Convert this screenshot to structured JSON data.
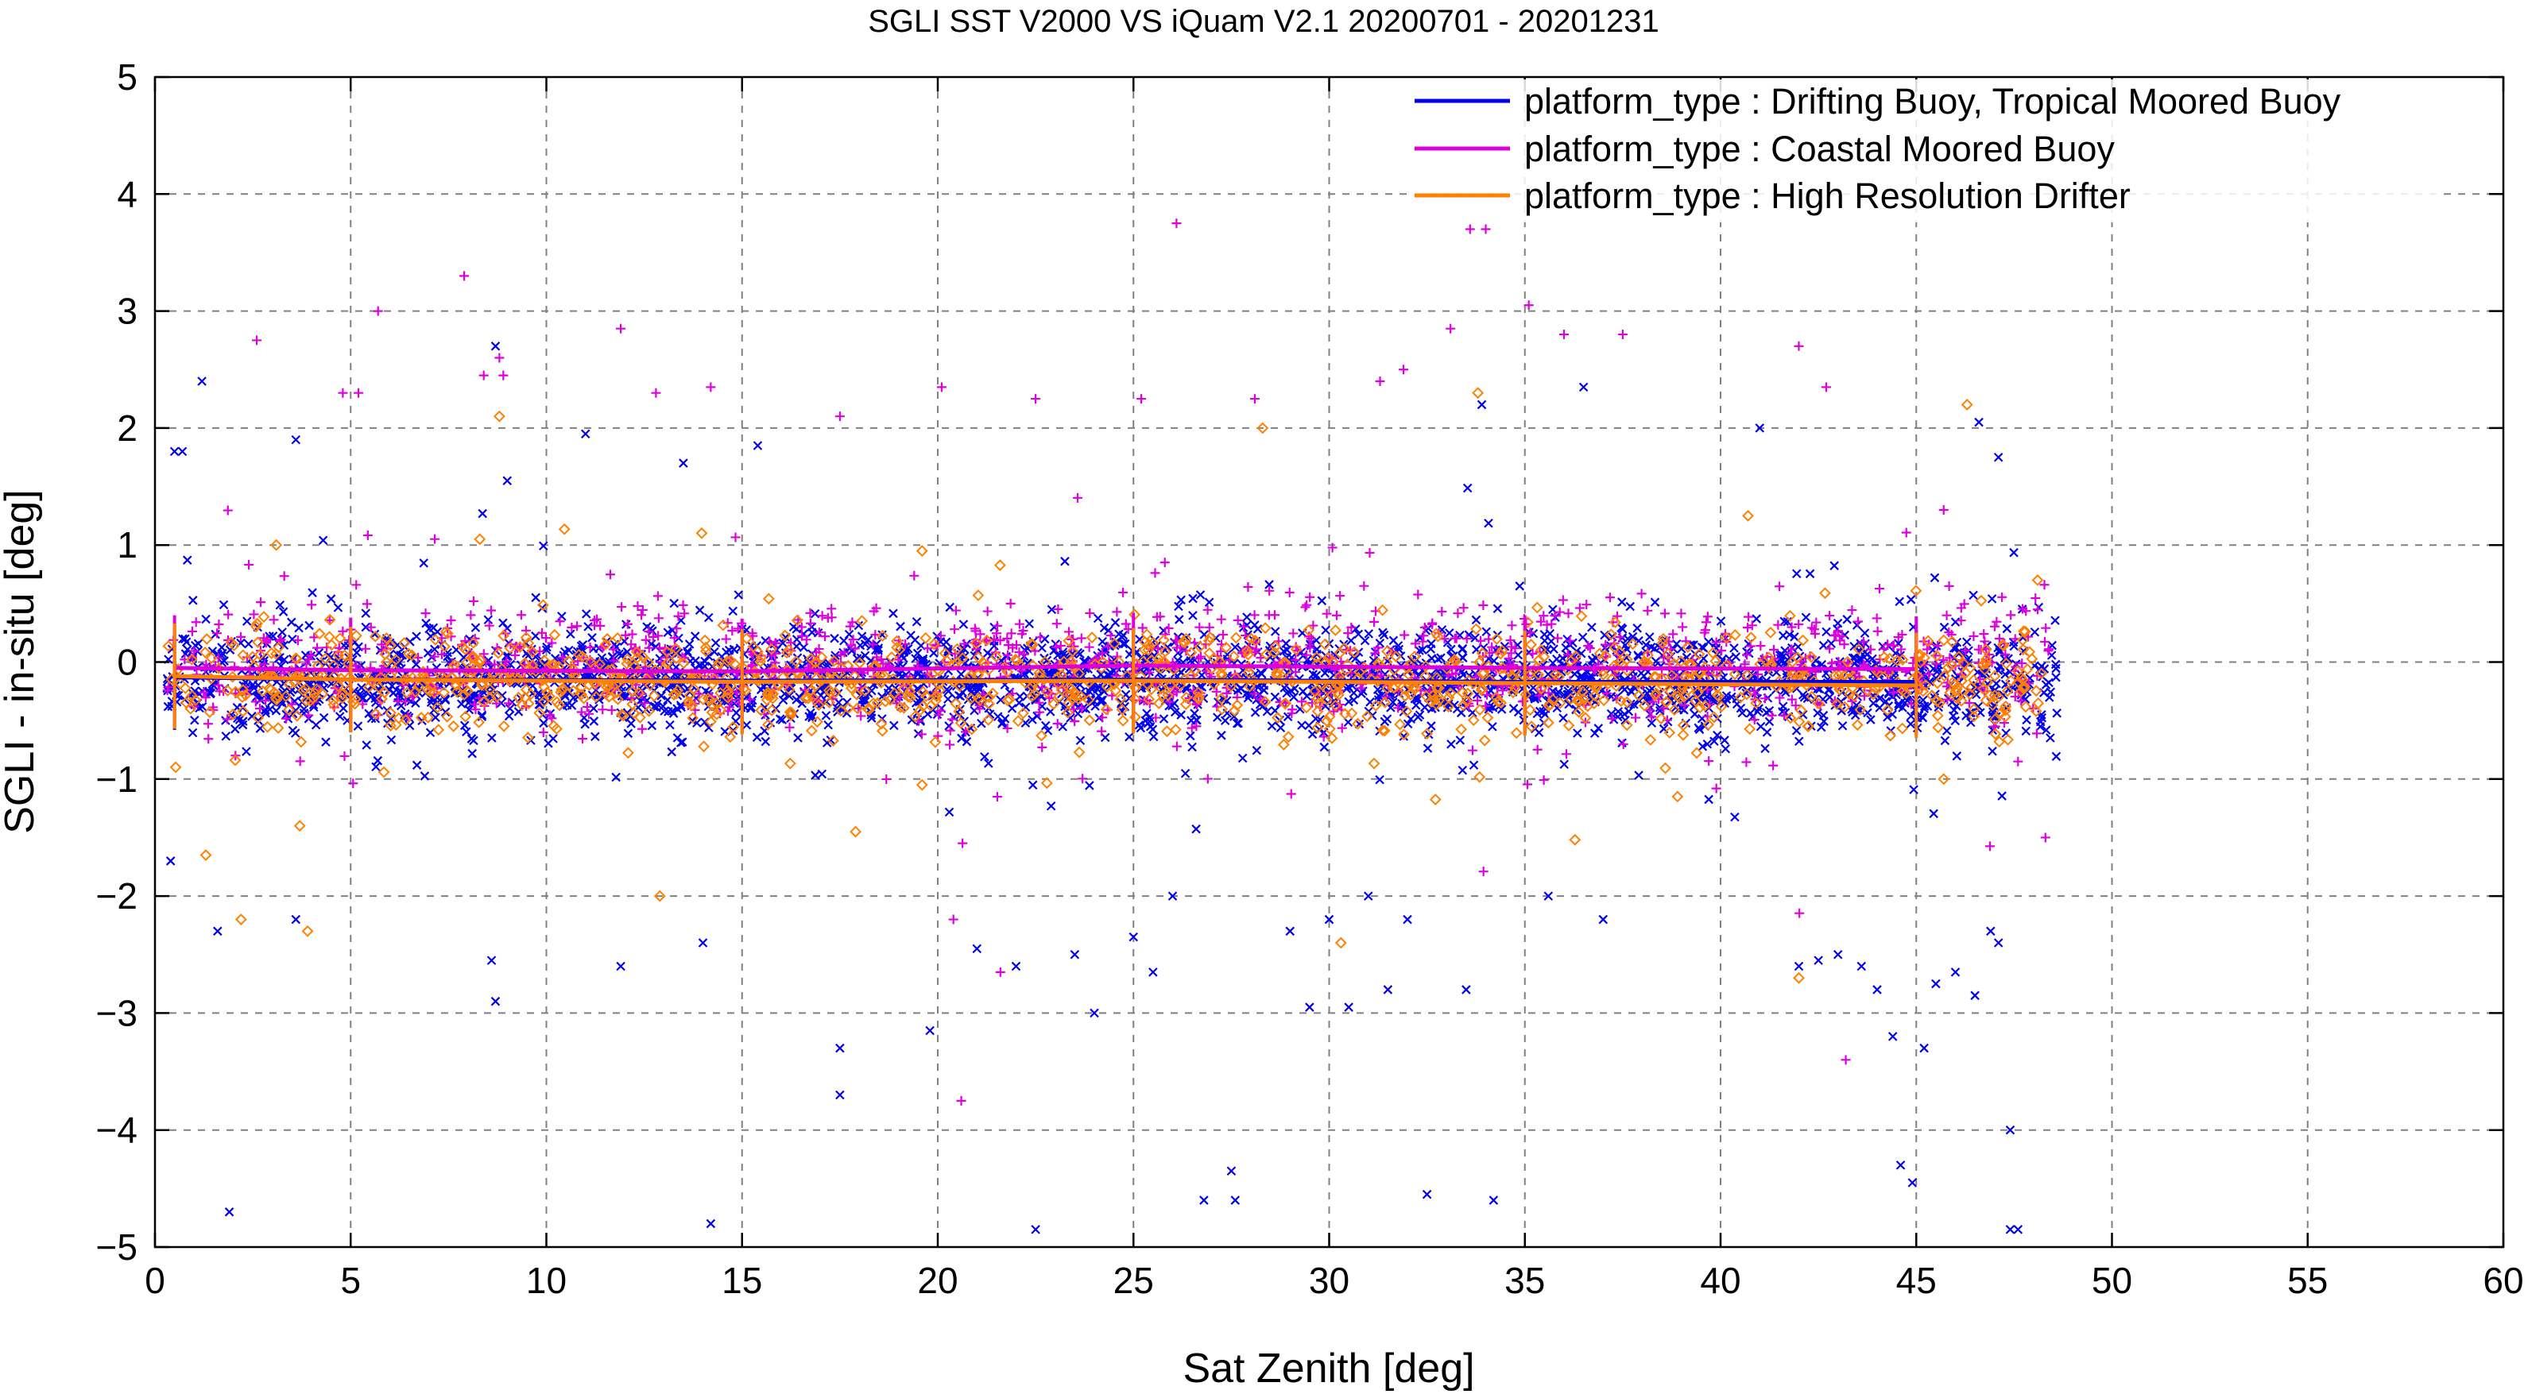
{
  "chart_data": {
    "type": "scatter",
    "title": "SGLI SST V2000 VS iQuam V2.1 20200701 - 20201231",
    "xlabel": "Sat Zenith [deg]",
    "ylabel": "SGLI - in-situ [deg]",
    "xlim": [
      0,
      60
    ],
    "ylim": [
      -5,
      5
    ],
    "xticks": [
      0,
      5,
      10,
      15,
      20,
      25,
      30,
      35,
      40,
      45,
      50,
      55,
      60
    ],
    "yticks": [
      -5,
      -4,
      -3,
      -2,
      -1,
      0,
      1,
      2,
      3,
      4,
      5
    ],
    "grid": true,
    "legend_position": "top-right",
    "series": [
      {
        "name": "platform_type : Drifting Buoy, Tropical Moored Buoy",
        "color": "#0000ee",
        "marker": "x",
        "x_range": [
          0.3,
          48.6
        ],
        "typical_range": [
          -0.6,
          0.3
        ],
        "mean_line": [
          [
            0.5,
            -0.13
          ],
          [
            5,
            -0.15
          ],
          [
            15,
            -0.16
          ],
          [
            25,
            -0.15
          ],
          [
            35,
            -0.17
          ],
          [
            45,
            -0.17
          ]
        ],
        "outliers": [
          [
            0.5,
            1.8
          ],
          [
            0.7,
            1.8
          ],
          [
            1.2,
            2.4
          ],
          [
            1.9,
            -4.7
          ],
          [
            1.6,
            -2.3
          ],
          [
            0.4,
            -1.7
          ],
          [
            3.6,
            -2.2
          ],
          [
            3.6,
            1.9
          ],
          [
            8.7,
            2.7
          ],
          [
            8.6,
            -2.55
          ],
          [
            8.7,
            -2.9
          ],
          [
            9.0,
            1.55
          ],
          [
            11.0,
            1.95
          ],
          [
            11.9,
            -2.6
          ],
          [
            13.5,
            1.7
          ],
          [
            14.0,
            -2.4
          ],
          [
            14.2,
            -4.8
          ],
          [
            15.4,
            1.85
          ],
          [
            17.5,
            -3.3
          ],
          [
            17.5,
            -3.7
          ],
          [
            19.8,
            -3.15
          ],
          [
            21.0,
            -2.45
          ],
          [
            22.0,
            -2.6
          ],
          [
            22.5,
            -4.85
          ],
          [
            23.5,
            -2.5
          ],
          [
            24.0,
            -3.0
          ],
          [
            25.0,
            -2.35
          ],
          [
            25.5,
            -2.65
          ],
          [
            26.0,
            -2.0
          ],
          [
            26.8,
            -4.6
          ],
          [
            27.5,
            -4.35
          ],
          [
            27.6,
            -4.6
          ],
          [
            29.0,
            -2.3
          ],
          [
            29.5,
            -2.95
          ],
          [
            30.0,
            -2.2
          ],
          [
            30.5,
            -2.95
          ],
          [
            31.0,
            -2.0
          ],
          [
            31.5,
            -2.8
          ],
          [
            32.0,
            -2.2
          ],
          [
            32.5,
            -4.55
          ],
          [
            33.5,
            -2.8
          ],
          [
            33.9,
            2.2
          ],
          [
            34.2,
            -4.6
          ],
          [
            35.6,
            -2.0
          ],
          [
            36.5,
            2.35
          ],
          [
            37.0,
            -2.2
          ],
          [
            41.0,
            2.0
          ],
          [
            42.0,
            -2.6
          ],
          [
            42.5,
            -2.55
          ],
          [
            43.0,
            -2.5
          ],
          [
            43.6,
            -2.6
          ],
          [
            44.0,
            -2.8
          ],
          [
            44.4,
            -3.2
          ],
          [
            44.6,
            -4.3
          ],
          [
            44.9,
            -4.45
          ],
          [
            45.2,
            -3.3
          ],
          [
            45.5,
            -2.75
          ],
          [
            46.0,
            -2.65
          ],
          [
            46.5,
            -2.85
          ],
          [
            46.9,
            -2.3
          ],
          [
            47.1,
            -2.4
          ],
          [
            47.4,
            -4.0
          ],
          [
            47.4,
            -4.85
          ],
          [
            47.6,
            -4.85
          ],
          [
            46.6,
            2.05
          ],
          [
            47.1,
            1.75
          ],
          [
            48.2,
            -0.45
          ]
        ]
      },
      {
        "name": "platform_type : Coastal Moored Buoy",
        "color": "#dd00dd",
        "marker": "+",
        "x_range": [
          0.3,
          48.4
        ],
        "typical_range": [
          -0.55,
          0.55
        ],
        "mean_line": [
          [
            0.5,
            -0.05
          ],
          [
            5,
            -0.07
          ],
          [
            15,
            -0.08
          ],
          [
            25,
            -0.03
          ],
          [
            35,
            -0.05
          ],
          [
            45,
            -0.06
          ]
        ],
        "outliers": [
          [
            2.6,
            2.75
          ],
          [
            4.8,
            2.3
          ],
          [
            5.2,
            2.3
          ],
          [
            5.7,
            3.0
          ],
          [
            7.9,
            3.3
          ],
          [
            8.4,
            2.45
          ],
          [
            8.8,
            2.6
          ],
          [
            8.9,
            2.45
          ],
          [
            11.9,
            2.85
          ],
          [
            12.8,
            2.3
          ],
          [
            14.2,
            2.35
          ],
          [
            17.5,
            2.1
          ],
          [
            20.1,
            2.35
          ],
          [
            20.4,
            -2.2
          ],
          [
            20.6,
            -3.75
          ],
          [
            21.6,
            -2.65
          ],
          [
            22.5,
            2.25
          ],
          [
            25.2,
            2.25
          ],
          [
            26.1,
            3.75
          ],
          [
            28.1,
            2.25
          ],
          [
            31.3,
            2.4
          ],
          [
            31.9,
            2.5
          ],
          [
            33.1,
            2.85
          ],
          [
            33.6,
            3.7
          ],
          [
            34.0,
            3.7
          ],
          [
            35.1,
            3.05
          ],
          [
            36.0,
            2.8
          ],
          [
            37.5,
            2.8
          ],
          [
            42.0,
            2.7
          ],
          [
            42.7,
            2.35
          ],
          [
            43.2,
            -3.4
          ],
          [
            45.7,
            1.3
          ],
          [
            48.1,
            0.45
          ],
          [
            48.3,
            -1.5
          ],
          [
            47.6,
            -0.85
          ]
        ]
      },
      {
        "name": "platform_type : High Resolution Drifter",
        "color": "#ff8000",
        "marker": "diamond",
        "x_range": [
          0.3,
          48.2
        ],
        "typical_range": [
          -0.55,
          0.25
        ],
        "mean_line": [
          [
            0.5,
            -0.12
          ],
          [
            5,
            -0.15
          ],
          [
            15,
            -0.17
          ],
          [
            25,
            -0.16
          ],
          [
            35,
            -0.18
          ],
          [
            45,
            -0.2
          ]
        ],
        "outliers": [
          [
            1.3,
            -1.65
          ],
          [
            2.2,
            -2.2
          ],
          [
            3.9,
            -2.3
          ],
          [
            3.7,
            -1.4
          ],
          [
            8.8,
            2.1
          ],
          [
            8.3,
            1.05
          ],
          [
            12.9,
            -2.0
          ],
          [
            17.9,
            -1.45
          ],
          [
            19.6,
            -1.05
          ],
          [
            28.3,
            2.0
          ],
          [
            30.3,
            -2.4
          ],
          [
            33.8,
            2.3
          ],
          [
            38.9,
            -1.15
          ],
          [
            40.7,
            1.25
          ],
          [
            42.0,
            -2.7
          ],
          [
            45.7,
            -1.0
          ],
          [
            46.3,
            2.2
          ],
          [
            48.1,
            0.7
          ],
          [
            3.1,
            1.0
          ],
          [
            19.6,
            0.95
          ]
        ]
      }
    ]
  }
}
